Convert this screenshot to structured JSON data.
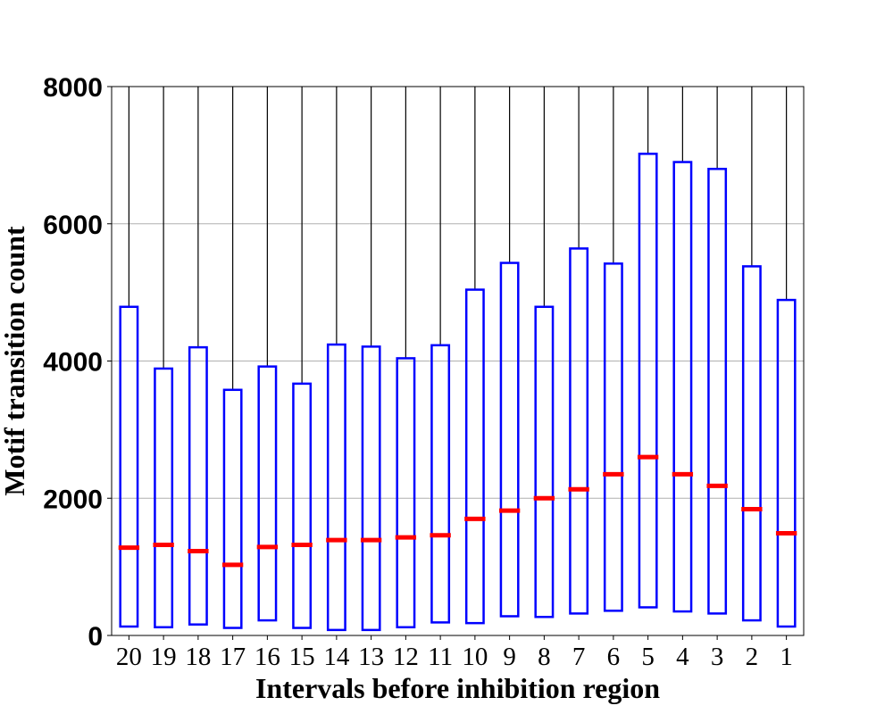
{
  "chart_data": {
    "type": "boxplot",
    "title": "",
    "xlabel": "Intervals before inhibition region",
    "ylabel": "Motif transition count",
    "ylim": [
      0,
      8000
    ],
    "yticks": [
      0,
      2000,
      4000,
      6000,
      8000
    ],
    "grid": "horizontal",
    "colors": {
      "box": "#0000ff",
      "median": "#ff0000",
      "whisker": "#000000",
      "grid": "#b0b0b0"
    },
    "categories": [
      "20",
      "19",
      "18",
      "17",
      "16",
      "15",
      "14",
      "13",
      "12",
      "11",
      "10",
      "9",
      "8",
      "7",
      "6",
      "5",
      "4",
      "3",
      "2",
      "1"
    ],
    "boxes": [
      {
        "q1": 130,
        "median": 1280,
        "q3": 4790,
        "whisker_high": 8000
      },
      {
        "q1": 120,
        "median": 1320,
        "q3": 3890,
        "whisker_high": 8000
      },
      {
        "q1": 160,
        "median": 1230,
        "q3": 4200,
        "whisker_high": 8000
      },
      {
        "q1": 110,
        "median": 1030,
        "q3": 3580,
        "whisker_high": 8000
      },
      {
        "q1": 220,
        "median": 1290,
        "q3": 3920,
        "whisker_high": 8000
      },
      {
        "q1": 110,
        "median": 1320,
        "q3": 3670,
        "whisker_high": 8000
      },
      {
        "q1": 80,
        "median": 1390,
        "q3": 4240,
        "whisker_high": 8000
      },
      {
        "q1": 80,
        "median": 1390,
        "q3": 4210,
        "whisker_high": 8000
      },
      {
        "q1": 120,
        "median": 1430,
        "q3": 4040,
        "whisker_high": 8000
      },
      {
        "q1": 190,
        "median": 1460,
        "q3": 4230,
        "whisker_high": 8000
      },
      {
        "q1": 180,
        "median": 1700,
        "q3": 5040,
        "whisker_high": 8000
      },
      {
        "q1": 280,
        "median": 1820,
        "q3": 5430,
        "whisker_high": 8000
      },
      {
        "q1": 270,
        "median": 2000,
        "q3": 4790,
        "whisker_high": 8000
      },
      {
        "q1": 320,
        "median": 2130,
        "q3": 5640,
        "whisker_high": 8000
      },
      {
        "q1": 360,
        "median": 2350,
        "q3": 5420,
        "whisker_high": 8000
      },
      {
        "q1": 410,
        "median": 2600,
        "q3": 7020,
        "whisker_high": 8000
      },
      {
        "q1": 350,
        "median": 2350,
        "q3": 6900,
        "whisker_high": 8000
      },
      {
        "q1": 320,
        "median": 2180,
        "q3": 6800,
        "whisker_high": 8000
      },
      {
        "q1": 220,
        "median": 1840,
        "q3": 5380,
        "whisker_high": 8000
      },
      {
        "q1": 130,
        "median": 1490,
        "q3": 4890,
        "whisker_high": 8000
      }
    ]
  }
}
